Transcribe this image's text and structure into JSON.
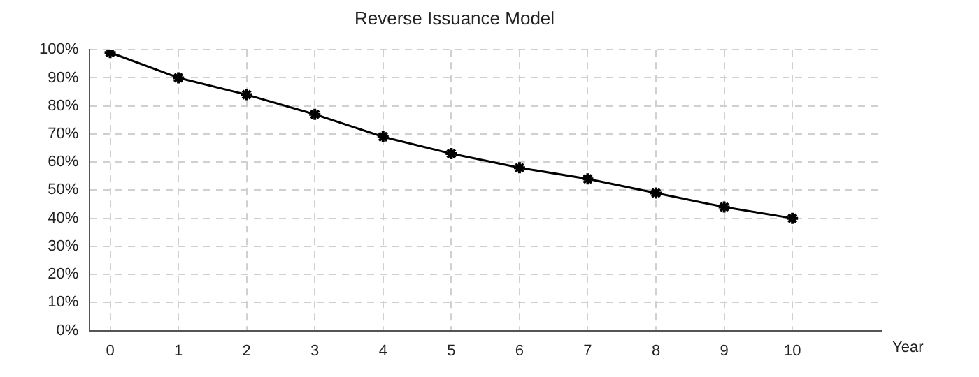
{
  "chart_data": {
    "type": "line",
    "title": "Reverse Issuance Model",
    "xlabel": "Year",
    "x": [
      0,
      1,
      2,
      3,
      4,
      5,
      6,
      7,
      8,
      9,
      10
    ],
    "series": [
      {
        "color": "#000000",
        "values": [
          99,
          90,
          84,
          77,
          69,
          63,
          58,
          54,
          49,
          44,
          40
        ]
      }
    ],
    "xlim": [
      -0.3,
      11.3
    ],
    "xticks": [
      0,
      1,
      2,
      3,
      4,
      5,
      6,
      7,
      8,
      9,
      10
    ],
    "ylim": [
      0,
      100
    ],
    "yticks": [
      {
        "value": 0,
        "label": "0%"
      },
      {
        "value": 10,
        "label": "10%"
      },
      {
        "value": 20,
        "label": "20%"
      },
      {
        "value": 30,
        "label": "30%"
      },
      {
        "value": 40,
        "label": "40%"
      },
      {
        "value": 50,
        "label": "50%"
      },
      {
        "value": 60,
        "label": "60%"
      },
      {
        "value": 70,
        "label": "70%"
      },
      {
        "value": 80,
        "label": "80%"
      },
      {
        "value": 90,
        "label": "90%"
      },
      {
        "value": 100,
        "label": "100%"
      }
    ],
    "grid": true,
    "legend": false,
    "marker": "cross",
    "line_style": "solid"
  }
}
